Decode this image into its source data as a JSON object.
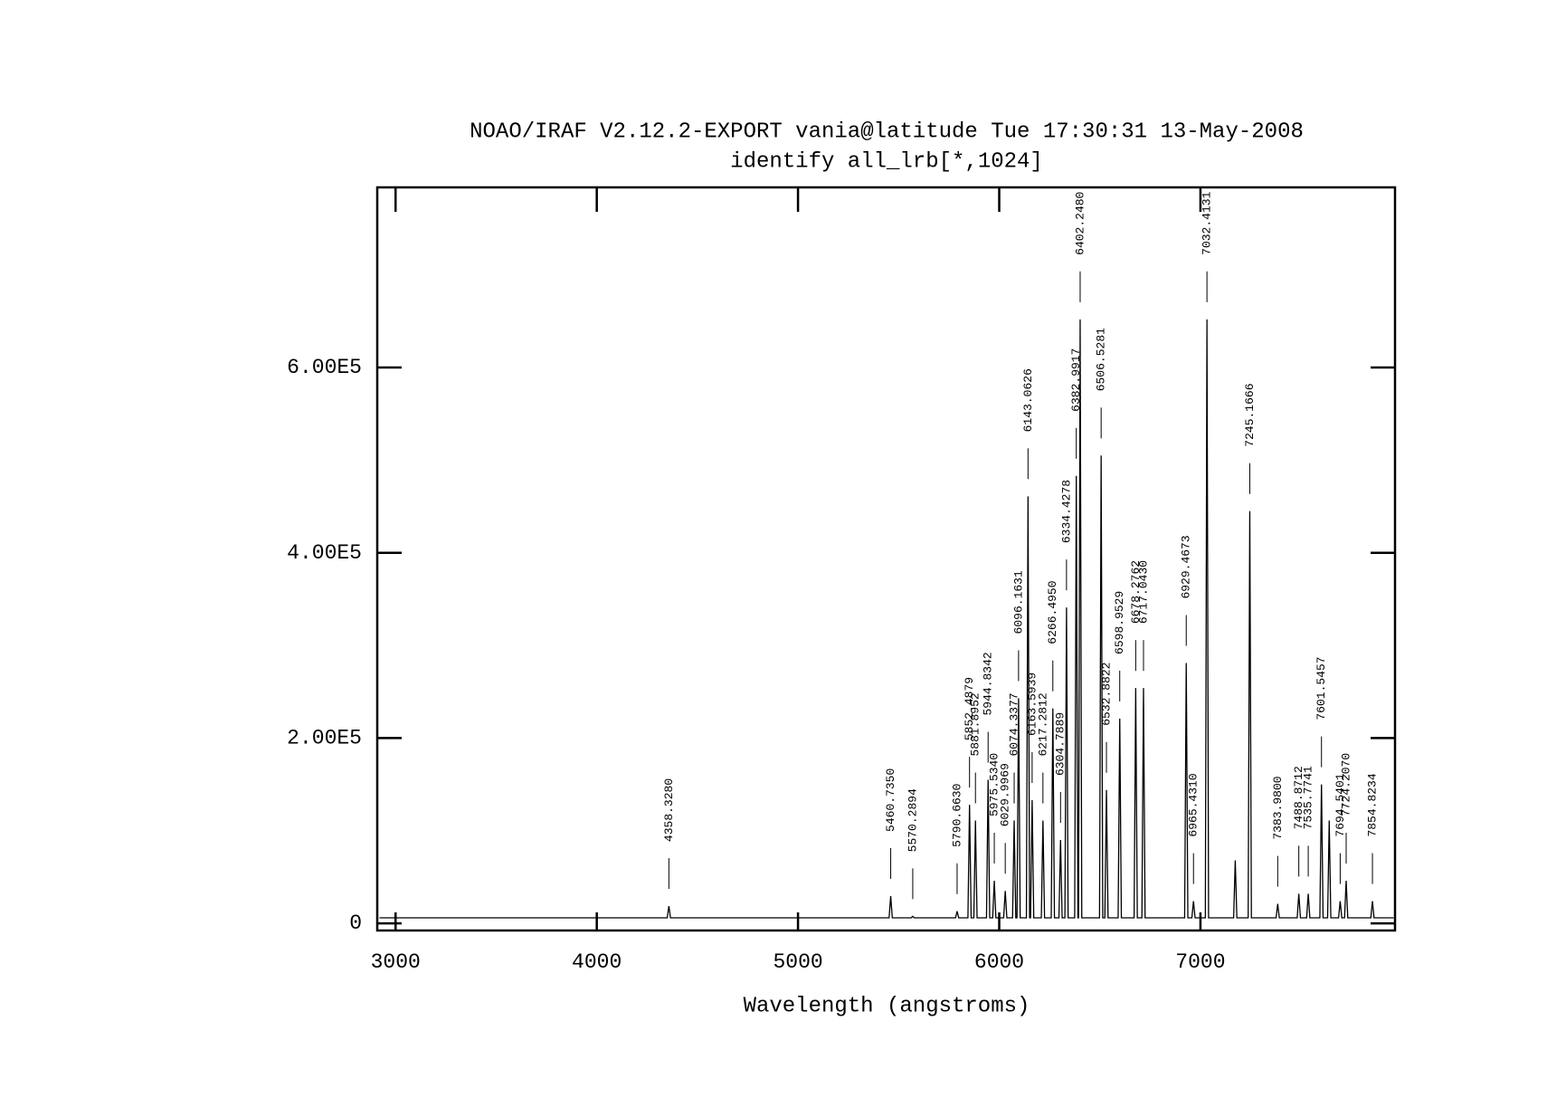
{
  "chart_data": {
    "type": "line",
    "title": "NOAO/IRAF V2.12.2-EXPORT vania@latitude Tue 17:30:31 13-May-2008",
    "subtitle": "identify all_lrb[*,1024]",
    "xlabel": "Wavelength (angstroms)",
    "xlim": [
      2909,
      7967
    ],
    "ylim": [
      -7700,
      794500
    ],
    "xticks": [
      3000,
      4000,
      5000,
      6000,
      7000
    ],
    "yticks": [
      0,
      {
        "value": 200000,
        "label": "2.00E5"
      },
      {
        "value": 400000,
        "label": "4.00E5"
      },
      {
        "value": 600000,
        "label": "6.00E5"
      }
    ],
    "series": [
      {
        "color": "#000000",
        "x": [
          2920,
          4350.3,
          4358.3,
          4366.3,
          5452.7,
          5460.7,
          5468.7,
          5562.3,
          5570.3,
          5578.3,
          5782.7,
          5790.7,
          5798.7,
          5844.5,
          5852.5,
          5860.5,
          5873.9,
          5881.9,
          5889.9,
          5936.8,
          5944.8,
          5952.8,
          5967.5,
          5975.5,
          5983.5,
          6022,
          6030,
          6038,
          6066.3,
          6074.3,
          6082.3,
          6088.2,
          6096.2,
          6104.2,
          6135.1,
          6143.1,
          6151.1,
          6155.6,
          6163.6,
          6171.6,
          6209.3,
          6217.3,
          6225.3,
          6258.5,
          6266.5,
          6274.5,
          6296.8,
          6304.8,
          6312.8,
          6326.4,
          6334.4,
          6342.4,
          6375,
          6383,
          6391,
          6394.2,
          6402.2,
          6410.2,
          6498.5,
          6506.5,
          6514.5,
          6524.9,
          6532.9,
          6540.9,
          6591,
          6599,
          6607,
          6670.3,
          6678.3,
          6686.3,
          6709,
          6717,
          6725,
          6921.5,
          6929.5,
          6937.5,
          6957.4,
          6965.4,
          6973.4,
          7024.4,
          7032.4,
          7040.4,
          7165,
          7173,
          7181,
          7237.2,
          7245.2,
          7253.2,
          7376,
          7384,
          7392,
          7480.9,
          7488.9,
          7496.9,
          7527.8,
          7535.8,
          7543.8,
          7593.5,
          7601.5,
          7609.5,
          7632,
          7640,
          7648,
          7686.5,
          7694.5,
          7702.5,
          7716.2,
          7724.2,
          7732.2,
          7846.8,
          7854.8,
          7862.8,
          7960
        ],
        "values": [
          6000,
          6000,
          18600,
          6000,
          6000,
          29500,
          6000,
          6000,
          7600,
          6000,
          6000,
          13000,
          6000,
          6000,
          128000,
          6000,
          6000,
          111000,
          6000,
          6000,
          155000,
          6000,
          6000,
          46000,
          6000,
          6000,
          35000,
          6000,
          6000,
          111000,
          6000,
          6000,
          243000,
          6000,
          6000,
          461000,
          6000,
          6000,
          133000,
          6000,
          6000,
          111000,
          6000,
          6000,
          232000,
          6000,
          6000,
          90000,
          6000,
          6000,
          341000,
          6000,
          6000,
          483000,
          6000,
          6000,
          652000,
          6000,
          6000,
          505000,
          6000,
          6000,
          144000,
          6000,
          6000,
          221000,
          6000,
          6000,
          254000,
          6000,
          6000,
          254000,
          6000,
          6000,
          281000,
          6000,
          6000,
          24000,
          6000,
          6000,
          652000,
          6000,
          6000,
          68000,
          6000,
          6000,
          445000,
          6000,
          6000,
          21000,
          6000,
          6000,
          32000,
          6000,
          6000,
          32000,
          6000,
          6000,
          150000,
          6000,
          6000,
          111000,
          6000,
          6000,
          24000,
          6000,
          6000,
          46000,
          6000,
          6000,
          24000,
          6000,
          6000
        ]
      }
    ],
    "annotations": [
      {
        "x": 4358.328,
        "label": "4358.3280"
      },
      {
        "x": 5460.735,
        "label": "5460.7350"
      },
      {
        "x": 5570.2894,
        "label": "5570.2894"
      },
      {
        "x": 5790.663,
        "label": "5790.6630"
      },
      {
        "x": 5852.4879,
        "label": "5852.4879"
      },
      {
        "x": 5881.8952,
        "label": "5881.8952"
      },
      {
        "x": 5944.8342,
        "label": "5944.8342"
      },
      {
        "x": 5975.534,
        "label": "5975.5340"
      },
      {
        "x": 6029.9969,
        "label": "6029.9969"
      },
      {
        "x": 6074.3377,
        "label": "6074.3377"
      },
      {
        "x": 6096.1631,
        "label": "6096.1631"
      },
      {
        "x": 6143.0626,
        "label": "6143.0626"
      },
      {
        "x": 6163.5939,
        "label": "6163.5939"
      },
      {
        "x": 6217.2812,
        "label": "6217.2812"
      },
      {
        "x": 6266.495,
        "label": "6266.4950"
      },
      {
        "x": 6304.7889,
        "label": "6304.7889"
      },
      {
        "x": 6334.4278,
        "label": "6334.4278"
      },
      {
        "x": 6382.9917,
        "label": "6382.9917"
      },
      {
        "x": 6402.248,
        "label": "6402.2480"
      },
      {
        "x": 6506.5281,
        "label": "6506.5281"
      },
      {
        "x": 6532.8822,
        "label": "6532.8822"
      },
      {
        "x": 6598.9529,
        "label": "6598.9529"
      },
      {
        "x": 6678.2762,
        "label": "6678.2762"
      },
      {
        "x": 6717.043,
        "label": "6717.0430"
      },
      {
        "x": 6929.4673,
        "label": "6929.4673"
      },
      {
        "x": 6965.431,
        "label": "6965.4310"
      },
      {
        "x": 7032.4131,
        "label": "7032.4131"
      },
      {
        "x": 7245.1666,
        "label": "7245.1666"
      },
      {
        "x": 7383.98,
        "label": "7383.9800"
      },
      {
        "x": 7488.8712,
        "label": "7488.8712"
      },
      {
        "x": 7535.7741,
        "label": "7535.7741"
      },
      {
        "x": 7601.5457,
        "label": "7601.5457"
      },
      {
        "x": 7694.5401,
        "label": "7694.5401"
      },
      {
        "x": 7724.207,
        "label": "7724.2070"
      },
      {
        "x": 7854.8234,
        "label": "7854.8234"
      }
    ]
  }
}
